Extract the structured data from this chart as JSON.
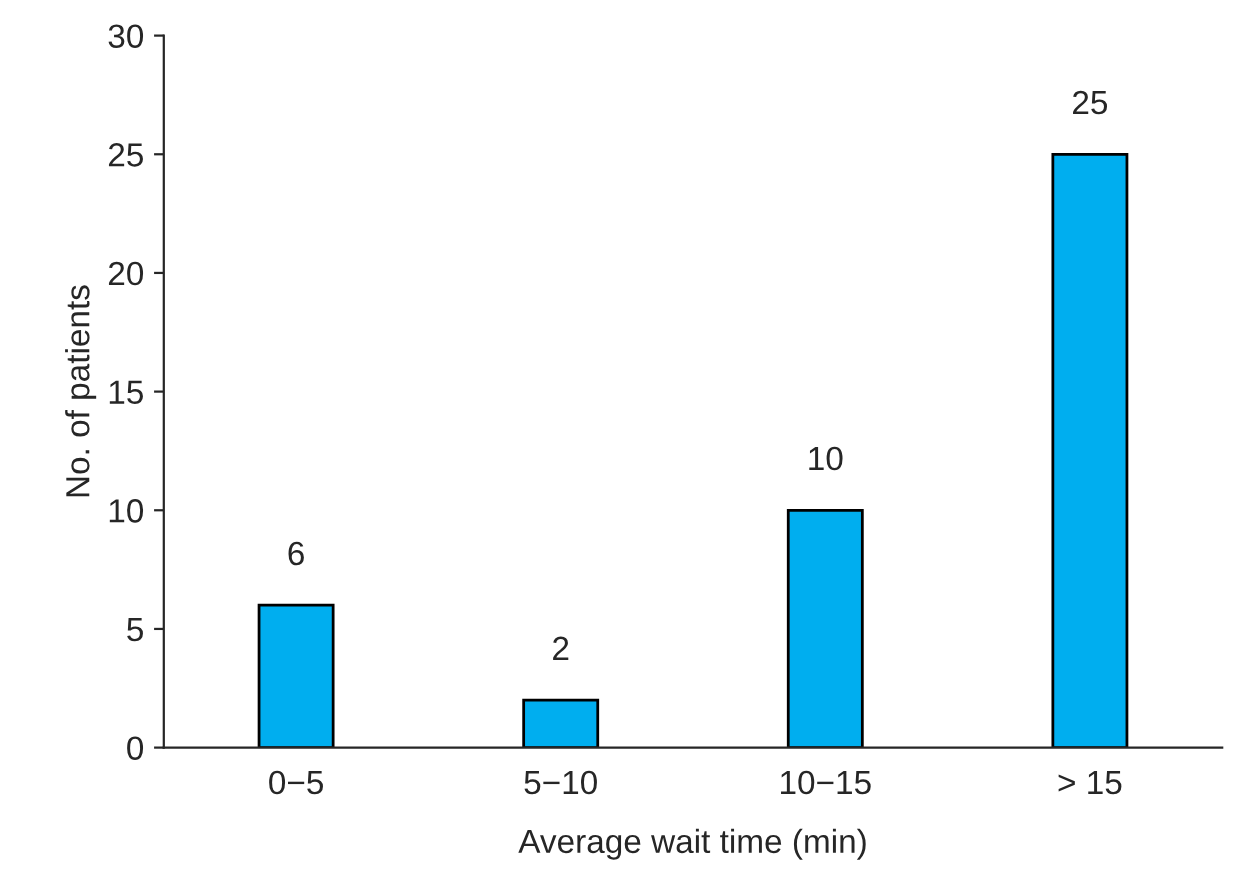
{
  "chart_data": {
    "type": "bar",
    "xlabel": "Average wait time (min)",
    "ylabel": "No. of patients",
    "categories": [
      "0−5",
      "5−10",
      "10−15",
      "> 15"
    ],
    "values": [
      6,
      2,
      10,
      25
    ],
    "color": "#00aeef",
    "ylim": [
      0,
      30
    ],
    "yticks": [
      0,
      5,
      10,
      15,
      20,
      25,
      30
    ],
    "grid": false,
    "data_labels": true
  }
}
